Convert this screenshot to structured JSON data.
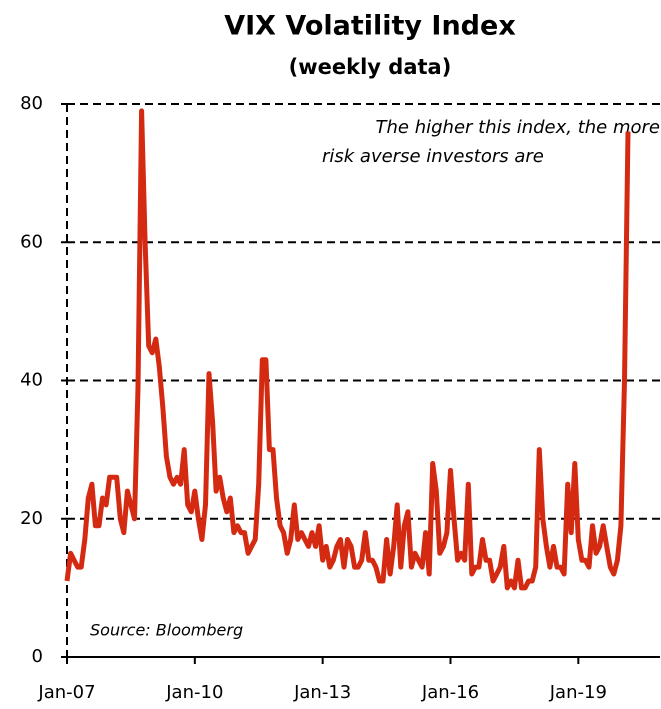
{
  "chart_data": {
    "type": "line",
    "title": "VIX Volatility Index",
    "subtitle": "(weekly data)",
    "annotations": [
      "The higher this index, the more",
      "risk averse investors are"
    ],
    "source": "Source: Bloomberg",
    "x": [
      "Jan-07",
      "Feb-07",
      "Mar-07",
      "Apr-07",
      "May-07",
      "Jun-07",
      "Jul-07",
      "Aug-07",
      "Sep-07",
      "Oct-07",
      "Nov-07",
      "Dec-07",
      "Jan-08",
      "Feb-08",
      "Mar-08",
      "Apr-08",
      "May-08",
      "Jun-08",
      "Jul-08",
      "Aug-08",
      "Sep-08",
      "Oct-08",
      "Nov-08",
      "Dec-08",
      "Jan-09",
      "Feb-09",
      "Mar-09",
      "Apr-09",
      "May-09",
      "Jun-09",
      "Jul-09",
      "Aug-09",
      "Sep-09",
      "Oct-09",
      "Nov-09",
      "Dec-09",
      "Jan-10",
      "Feb-10",
      "Mar-10",
      "Apr-10",
      "May-10",
      "Jun-10",
      "Jul-10",
      "Aug-10",
      "Sep-10",
      "Oct-10",
      "Nov-10",
      "Dec-10",
      "Jan-11",
      "Feb-11",
      "Mar-11",
      "Apr-11",
      "May-11",
      "Jun-11",
      "Jul-11",
      "Aug-11",
      "Sep-11",
      "Oct-11",
      "Nov-11",
      "Dec-11",
      "Jan-12",
      "Feb-12",
      "Mar-12",
      "Apr-12",
      "May-12",
      "Jun-12",
      "Jul-12",
      "Aug-12",
      "Sep-12",
      "Oct-12",
      "Nov-12",
      "Dec-12",
      "Jan-13",
      "Feb-13",
      "Mar-13",
      "Apr-13",
      "May-13",
      "Jun-13",
      "Jul-13",
      "Aug-13",
      "Sep-13",
      "Oct-13",
      "Nov-13",
      "Dec-13",
      "Jan-14",
      "Feb-14",
      "Mar-14",
      "Apr-14",
      "May-14",
      "Jun-14",
      "Jul-14",
      "Aug-14",
      "Sep-14",
      "Oct-14",
      "Nov-14",
      "Dec-14",
      "Jan-15",
      "Feb-15",
      "Mar-15",
      "Apr-15",
      "May-15",
      "Jun-15",
      "Jul-15",
      "Aug-15",
      "Sep-15",
      "Oct-15",
      "Nov-15",
      "Dec-15",
      "Jan-16",
      "Feb-16",
      "Mar-16",
      "Apr-16",
      "May-16",
      "Jun-16",
      "Jul-16",
      "Aug-16",
      "Sep-16",
      "Oct-16",
      "Nov-16",
      "Dec-16",
      "Jan-17",
      "Feb-17",
      "Mar-17",
      "Apr-17",
      "May-17",
      "Jun-17",
      "Jul-17",
      "Aug-17",
      "Sep-17",
      "Oct-17",
      "Nov-17",
      "Dec-17",
      "Jan-18",
      "Feb-18",
      "Mar-18",
      "Apr-18",
      "May-18",
      "Jun-18",
      "Jul-18",
      "Aug-18",
      "Sep-18",
      "Oct-18",
      "Nov-18",
      "Dec-18",
      "Jan-19",
      "Feb-19",
      "Mar-19",
      "Apr-19",
      "May-19",
      "Jun-19",
      "Jul-19",
      "Aug-19",
      "Sep-19",
      "Oct-19",
      "Nov-19",
      "Dec-19",
      "Jan-20",
      "Feb-20",
      "Mar-20"
    ],
    "series": [
      {
        "name": "VIX",
        "color": "#d42a12",
        "values": [
          11,
          15,
          14,
          13,
          13,
          17,
          23,
          25,
          19,
          19,
          23,
          22,
          26,
          26,
          26,
          20,
          18,
          24,
          22,
          20,
          39,
          79,
          60,
          45,
          44,
          46,
          42,
          36,
          29,
          26,
          25,
          26,
          25,
          30,
          22,
          21,
          24,
          20,
          17,
          22,
          41,
          34,
          24,
          26,
          23,
          21,
          23,
          18,
          19,
          18,
          18,
          15,
          16,
          17,
          25,
          43,
          43,
          30,
          30,
          23,
          19,
          18,
          15,
          17,
          22,
          17,
          18,
          17,
          16,
          18,
          16,
          19,
          14,
          16,
          13,
          14,
          16,
          17,
          13,
          17,
          16,
          13,
          13,
          14,
          18,
          14,
          14,
          13,
          11,
          11,
          17,
          12,
          16,
          22,
          13,
          19,
          21,
          13,
          15,
          14,
          13,
          18,
          12,
          28,
          24,
          15,
          16,
          18,
          27,
          20,
          14,
          15,
          14,
          25,
          12,
          13,
          13,
          17,
          14,
          14,
          11,
          12,
          13,
          16,
          10,
          11,
          10,
          14,
          10,
          10,
          11,
          11,
          13,
          30,
          20,
          16,
          13,
          16,
          13,
          13,
          12,
          25,
          18,
          28,
          17,
          14,
          14,
          13,
          19,
          15,
          16,
          19,
          16,
          13,
          12,
          14,
          19,
          40,
          76
        ]
      }
    ],
    "xlim": [
      "Jan-07",
      "Dec-20"
    ],
    "xticks": [
      "Jan-07",
      "Jan-10",
      "Jan-13",
      "Jan-16",
      "Jan-19"
    ],
    "ylim": [
      0,
      80
    ],
    "yticks": [
      0,
      20,
      40,
      60,
      80
    ],
    "grid": true
  }
}
